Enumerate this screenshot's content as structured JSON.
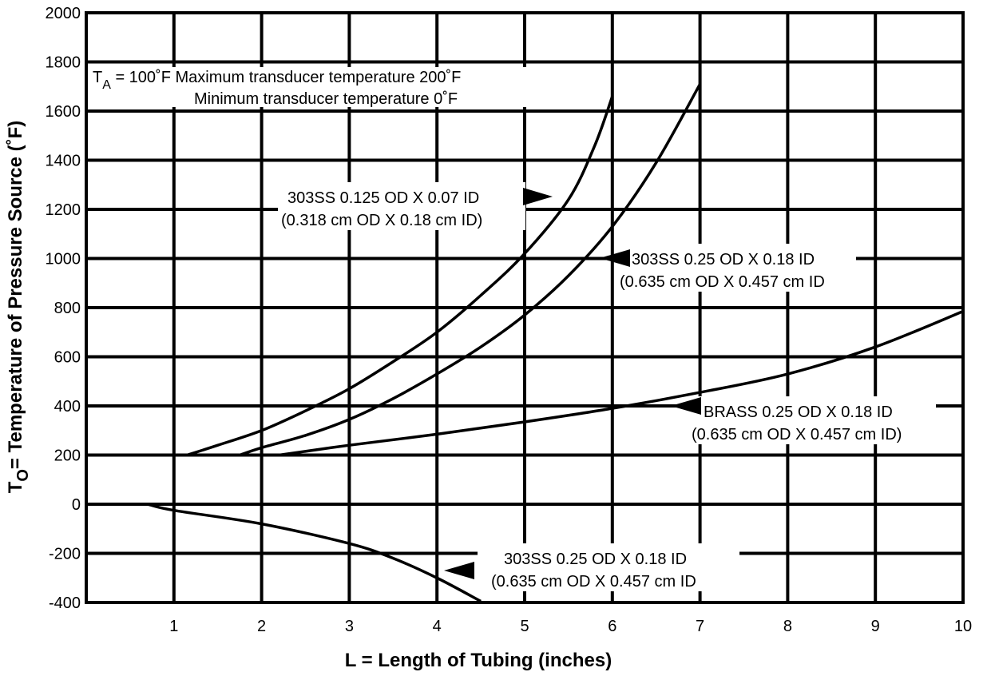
{
  "chart_data": {
    "type": "line",
    "xlabel": "L = Length of Tubing (inches)",
    "ylabel_prefix": "T",
    "ylabel_sub": "O",
    "ylabel_main": "= Temperature of Pressure Source (˚F)",
    "xlim": [
      0,
      10
    ],
    "ylim": [
      -400,
      2000
    ],
    "x_ticks": [
      "1",
      "2",
      "3",
      "4",
      "5",
      "6",
      "7",
      "8",
      "9",
      "10"
    ],
    "y_ticks": [
      "-400",
      "-200",
      "0",
      "200",
      "400",
      "600",
      "800",
      "1000",
      "1200",
      "1400",
      "1600",
      "1800",
      "2000"
    ],
    "grid": true,
    "note": {
      "prefix": "T",
      "sub": "A",
      "line1": " = 100˚F Maximum transducer temperature 200˚F",
      "line2": "Minimum transducer temperature 0˚F"
    },
    "series": [
      {
        "name": "303SS 0.125 OD X 0.07 ID",
        "name_metric": "(0.318 cm OD X 0.18 cm ID)",
        "x": [
          1.15,
          1.5,
          2.0,
          2.5,
          3.0,
          3.5,
          4.0,
          4.5,
          5.0,
          5.5,
          5.8,
          6.0
        ],
        "y": [
          200,
          240,
          300,
          380,
          470,
          580,
          700,
          850,
          1020,
          1240,
          1460,
          1660
        ]
      },
      {
        "name": "303SS 0.25 OD X 0.18 ID",
        "name_metric": "(0.635 cm OD X 0.457 cm ID",
        "x": [
          1.75,
          2.0,
          2.5,
          3.0,
          3.5,
          4.0,
          4.5,
          5.0,
          5.5,
          6.0,
          6.5,
          7.0
        ],
        "y": [
          200,
          230,
          280,
          345,
          430,
          530,
          640,
          770,
          930,
          1130,
          1390,
          1710
        ]
      },
      {
        "name": "BRASS 0.25 OD X 0.18 ID",
        "name_metric": "(0.635 cm OD X 0.457 cm ID)",
        "x": [
          2.2,
          3.0,
          4.0,
          5.0,
          6.0,
          7.0,
          8.0,
          9.0,
          10.0
        ],
        "y": [
          200,
          240,
          285,
          335,
          390,
          455,
          530,
          640,
          785
        ]
      },
      {
        "name": "303SS 0.25 OD X 0.18 ID",
        "name_metric": "(0.635 cm OD X 0.457 cm ID",
        "x": [
          0.7,
          1.0,
          2.0,
          3.0,
          3.5,
          4.0,
          4.5
        ],
        "y": [
          0,
          -25,
          -80,
          -160,
          -220,
          -300,
          -395
        ]
      }
    ]
  }
}
